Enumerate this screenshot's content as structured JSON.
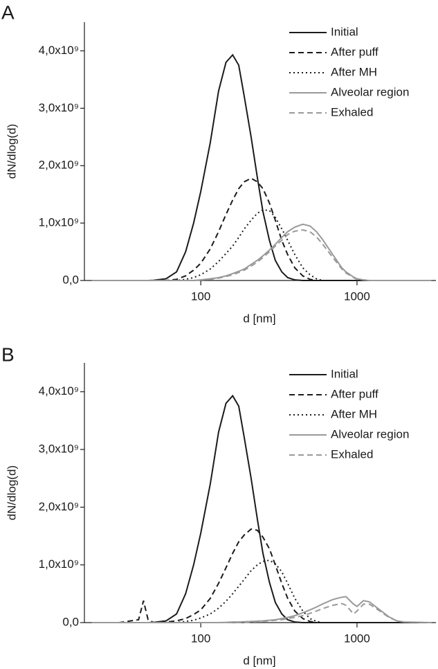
{
  "chart_data": [
    {
      "type": "line",
      "panel": "A",
      "xlabel": "d [nm]",
      "ylabel": "dN/dlog(d)",
      "log_x": true,
      "legend": "top-right",
      "xlim": [
        18,
        3200
      ],
      "xticks": [
        100,
        1000
      ],
      "ylim": [
        0,
        4500000000.0
      ],
      "yticks": [
        {
          "value": 0,
          "label": "0,0"
        },
        {
          "value": 1000000000.0,
          "label": "1,0x10⁹"
        },
        {
          "value": 2000000000.0,
          "label": "2,0x10⁹"
        },
        {
          "value": 3000000000.0,
          "label": "3,0x10⁹"
        },
        {
          "value": 4000000000.0,
          "label": "4,0x10⁹"
        }
      ],
      "x": [
        20,
        30,
        40,
        43,
        46,
        50,
        60,
        70,
        80,
        90,
        100,
        115,
        130,
        145,
        160,
        175,
        190,
        210,
        230,
        250,
        275,
        300,
        330,
        360,
        400,
        450,
        500,
        550,
        600,
        700,
        800,
        850,
        950,
        1000,
        1100,
        1200,
        1400,
        1600,
        1800,
        2000,
        3000
      ],
      "series": [
        {
          "name": "Initial",
          "color": "#1a1a1a",
          "dash": "solid",
          "values": [
            0,
            0,
            0,
            0,
            0,
            5000000.0,
            30000000.0,
            150000000.0,
            500000000.0,
            1000000000.0,
            1550000000.0,
            2400000000.0,
            3300000000.0,
            3800000000.0,
            3930000000.0,
            3750000000.0,
            3200000000.0,
            2500000000.0,
            1800000000.0,
            1200000000.0,
            700000000.0,
            350000000.0,
            150000000.0,
            50000000.0,
            10000000.0,
            0,
            0,
            0,
            0,
            0,
            0,
            0,
            0,
            0,
            0,
            0,
            0,
            0,
            0,
            0,
            0
          ]
        },
        {
          "name": "After puff",
          "color": "#1a1a1a",
          "dash": "dashed",
          "values": [
            0,
            0,
            0,
            0,
            0,
            0,
            0,
            20000000.0,
            80000000.0,
            180000000.0,
            300000000.0,
            550000000.0,
            850000000.0,
            1150000000.0,
            1400000000.0,
            1600000000.0,
            1720000000.0,
            1780000000.0,
            1720000000.0,
            1600000000.0,
            1350000000.0,
            1050000000.0,
            700000000.0,
            450000000.0,
            220000000.0,
            80000000.0,
            20000000.0,
            0,
            0,
            0,
            0,
            0,
            0,
            0,
            0,
            0,
            0,
            0,
            0,
            0,
            0
          ]
        },
        {
          "name": "After MH",
          "color": "#1a1a1a",
          "dash": "dotted",
          "values": [
            0,
            0,
            0,
            0,
            0,
            0,
            0,
            0,
            20000000.0,
            50000000.0,
            100000000.0,
            200000000.0,
            330000000.0,
            470000000.0,
            600000000.0,
            750000000.0,
            900000000.0,
            1050000000.0,
            1170000000.0,
            1230000000.0,
            1220000000.0,
            1100000000.0,
            900000000.0,
            700000000.0,
            450000000.0,
            220000000.0,
            100000000.0,
            30000000.0,
            0,
            0,
            0,
            0,
            0,
            0,
            0,
            0,
            0,
            0,
            0,
            0,
            0
          ]
        },
        {
          "name": "Alveolar region",
          "color": "#999999",
          "dash": "solid",
          "values": [
            0,
            0,
            0,
            0,
            0,
            0,
            0,
            0,
            0,
            0,
            10000000.0,
            30000000.0,
            50000000.0,
            80000000.0,
            120000000.0,
            160000000.0,
            200000000.0,
            280000000.0,
            350000000.0,
            430000000.0,
            530000000.0,
            630000000.0,
            750000000.0,
            850000000.0,
            930000000.0,
            980000000.0,
            950000000.0,
            850000000.0,
            720000000.0,
            450000000.0,
            220000000.0,
            150000000.0,
            60000000.0,
            30000000.0,
            10000000.0,
            0,
            0,
            0,
            0,
            0,
            0
          ]
        },
        {
          "name": "Exhaled",
          "color": "#999999",
          "dash": "dashed",
          "values": [
            0,
            0,
            0,
            0,
            0,
            0,
            0,
            0,
            0,
            0,
            10000000.0,
            20000000.0,
            40000000.0,
            70000000.0,
            100000000.0,
            140000000.0,
            180000000.0,
            250000000.0,
            320000000.0,
            400000000.0,
            500000000.0,
            600000000.0,
            700000000.0,
            800000000.0,
            860000000.0,
            880000000.0,
            850000000.0,
            760000000.0,
            640000000.0,
            400000000.0,
            200000000.0,
            130000000.0,
            50000000.0,
            20000000.0,
            10000000.0,
            0,
            0,
            0,
            0,
            0,
            0
          ]
        }
      ]
    },
    {
      "type": "line",
      "panel": "B",
      "xlabel": "d [nm]",
      "ylabel": "dN/dlog(d)",
      "log_x": true,
      "legend": "top-right",
      "xlim": [
        18,
        3200
      ],
      "xticks": [
        100,
        1000
      ],
      "ylim": [
        0,
        4500000000.0
      ],
      "yticks": [
        {
          "value": 0,
          "label": "0,0"
        },
        {
          "value": 1000000000.0,
          "label": "1,0x10⁹"
        },
        {
          "value": 2000000000.0,
          "label": "2,0x10⁹"
        },
        {
          "value": 3000000000.0,
          "label": "3,0x10⁹"
        },
        {
          "value": 4000000000.0,
          "label": "4,0x10⁹"
        }
      ],
      "x": [
        20,
        30,
        40,
        43,
        46,
        50,
        60,
        70,
        80,
        90,
        100,
        115,
        130,
        145,
        160,
        175,
        190,
        210,
        230,
        250,
        275,
        300,
        330,
        360,
        400,
        450,
        500,
        550,
        600,
        700,
        800,
        850,
        950,
        1000,
        1100,
        1200,
        1400,
        1600,
        1800,
        2000,
        3000
      ],
      "series": [
        {
          "name": "Initial",
          "color": "#1a1a1a",
          "dash": "solid",
          "values": [
            0,
            0,
            0,
            0,
            0,
            5000000.0,
            30000000.0,
            150000000.0,
            500000000.0,
            1000000000.0,
            1550000000.0,
            2400000000.0,
            3300000000.0,
            3800000000.0,
            3930000000.0,
            3750000000.0,
            3200000000.0,
            2500000000.0,
            1800000000.0,
            1200000000.0,
            700000000.0,
            350000000.0,
            150000000.0,
            50000000.0,
            10000000.0,
            0,
            0,
            0,
            0,
            0,
            0,
            0,
            0,
            0,
            0,
            0,
            0,
            0,
            0,
            0,
            0
          ]
        },
        {
          "name": "After puff",
          "color": "#1a1a1a",
          "dash": "dashed",
          "values": [
            0,
            0,
            50000000.0,
            380000000.0,
            50000000.0,
            0,
            10000000.0,
            30000000.0,
            70000000.0,
            140000000.0,
            220000000.0,
            420000000.0,
            680000000.0,
            950000000.0,
            1200000000.0,
            1400000000.0,
            1520000000.0,
            1620000000.0,
            1600000000.0,
            1480000000.0,
            1280000000.0,
            1000000000.0,
            680000000.0,
            420000000.0,
            200000000.0,
            70000000.0,
            20000000.0,
            0,
            0,
            0,
            0,
            0,
            0,
            0,
            0,
            0,
            0,
            0,
            0,
            0,
            0
          ]
        },
        {
          "name": "After MH",
          "color": "#1a1a1a",
          "dash": "dotted",
          "values": [
            0,
            0,
            0,
            0,
            0,
            0,
            0,
            0,
            20000000.0,
            40000000.0,
            80000000.0,
            150000000.0,
            250000000.0,
            370000000.0,
            500000000.0,
            630000000.0,
            750000000.0,
            900000000.0,
            1000000000.0,
            1060000000.0,
            1080000000.0,
            1020000000.0,
            880000000.0,
            680000000.0,
            420000000.0,
            200000000.0,
            70000000.0,
            20000000.0,
            0,
            0,
            0,
            0,
            0,
            0,
            0,
            0,
            0,
            0,
            0,
            0,
            0
          ]
        },
        {
          "name": "Alveolar region",
          "color": "#999999",
          "dash": "solid",
          "values": [
            0,
            0,
            0,
            0,
            0,
            0,
            0,
            0,
            0,
            0,
            0,
            0,
            0,
            5000000.0,
            10000000.0,
            10000000.0,
            15000000.0,
            20000000.0,
            25000000.0,
            30000000.0,
            40000000.0,
            50000000.0,
            70000000.0,
            90000000.0,
            120000000.0,
            170000000.0,
            220000000.0,
            270000000.0,
            320000000.0,
            400000000.0,
            440000000.0,
            450000000.0,
            320000000.0,
            280000000.0,
            380000000.0,
            360000000.0,
            220000000.0,
            100000000.0,
            30000000.0,
            10000000.0,
            0
          ]
        },
        {
          "name": "Exhaled",
          "color": "#999999",
          "dash": "dashed",
          "values": [
            0,
            0,
            0,
            0,
            0,
            0,
            0,
            0,
            0,
            0,
            0,
            0,
            0,
            0,
            0,
            0,
            5000000.0,
            10000000.0,
            15000000.0,
            20000000.0,
            30000000.0,
            40000000.0,
            50000000.0,
            70000000.0,
            90000000.0,
            120000000.0,
            160000000.0,
            200000000.0,
            240000000.0,
            300000000.0,
            330000000.0,
            300000000.0,
            150000000.0,
            200000000.0,
            320000000.0,
            320000000.0,
            200000000.0,
            90000000.0,
            30000000.0,
            10000000.0,
            0
          ]
        }
      ]
    }
  ]
}
